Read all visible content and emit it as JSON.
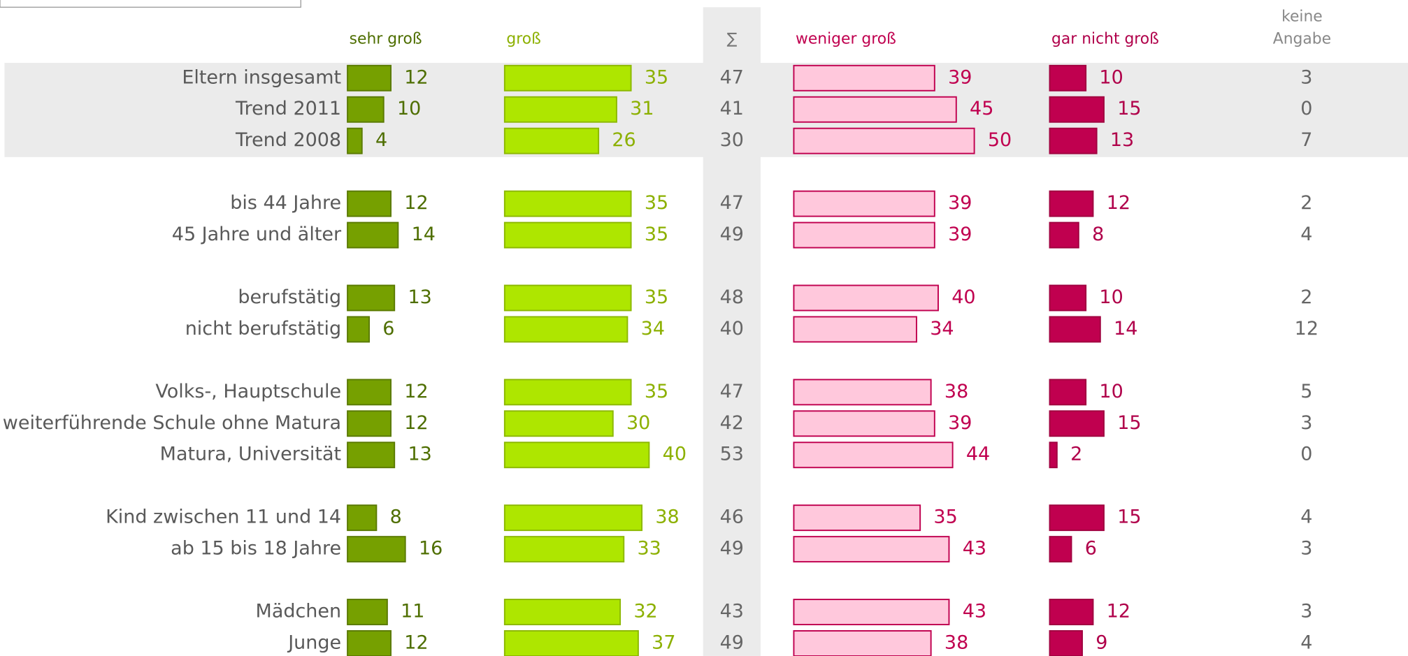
{
  "chart_data": {
    "type": "bar",
    "categories": [
      "Eltern insgesamt",
      "Trend 2011",
      "Trend 2008",
      "bis 44 Jahre",
      "45 Jahre und älter",
      "berufstätig",
      "nicht berufstätig",
      "Volks-, Hauptschule",
      "weiterführende Schule ohne Matura",
      "Matura, Universität",
      "Kind zwischen 11 und 14",
      "ab 15 bis 18 Jahre",
      "Mädchen",
      "Junge"
    ],
    "series": [
      {
        "name": "sehr groß",
        "color": "#76a000",
        "values": [
          12,
          10,
          4,
          12,
          14,
          13,
          6,
          12,
          12,
          13,
          8,
          16,
          11,
          12
        ]
      },
      {
        "name": "groß",
        "color": "#aee600",
        "values": [
          35,
          31,
          26,
          35,
          35,
          35,
          34,
          35,
          30,
          40,
          38,
          33,
          32,
          37
        ]
      },
      {
        "name": "weniger groß",
        "color": "#ffc8dc",
        "values": [
          39,
          45,
          50,
          39,
          39,
          40,
          34,
          38,
          39,
          44,
          35,
          43,
          43,
          38
        ]
      },
      {
        "name": "gar nicht groß",
        "color": "#c0004f",
        "values": [
          10,
          15,
          13,
          12,
          8,
          10,
          14,
          10,
          15,
          2,
          15,
          6,
          12,
          9
        ]
      }
    ],
    "sum": {
      "name": "∑",
      "values": [
        47,
        41,
        30,
        47,
        49,
        48,
        40,
        47,
        42,
        53,
        46,
        49,
        43,
        49
      ]
    },
    "no_answer": {
      "name": [
        "keine",
        "Angabe"
      ],
      "values": [
        3,
        0,
        7,
        2,
        4,
        2,
        12,
        5,
        3,
        0,
        4,
        3,
        3,
        4
      ]
    }
  }
}
